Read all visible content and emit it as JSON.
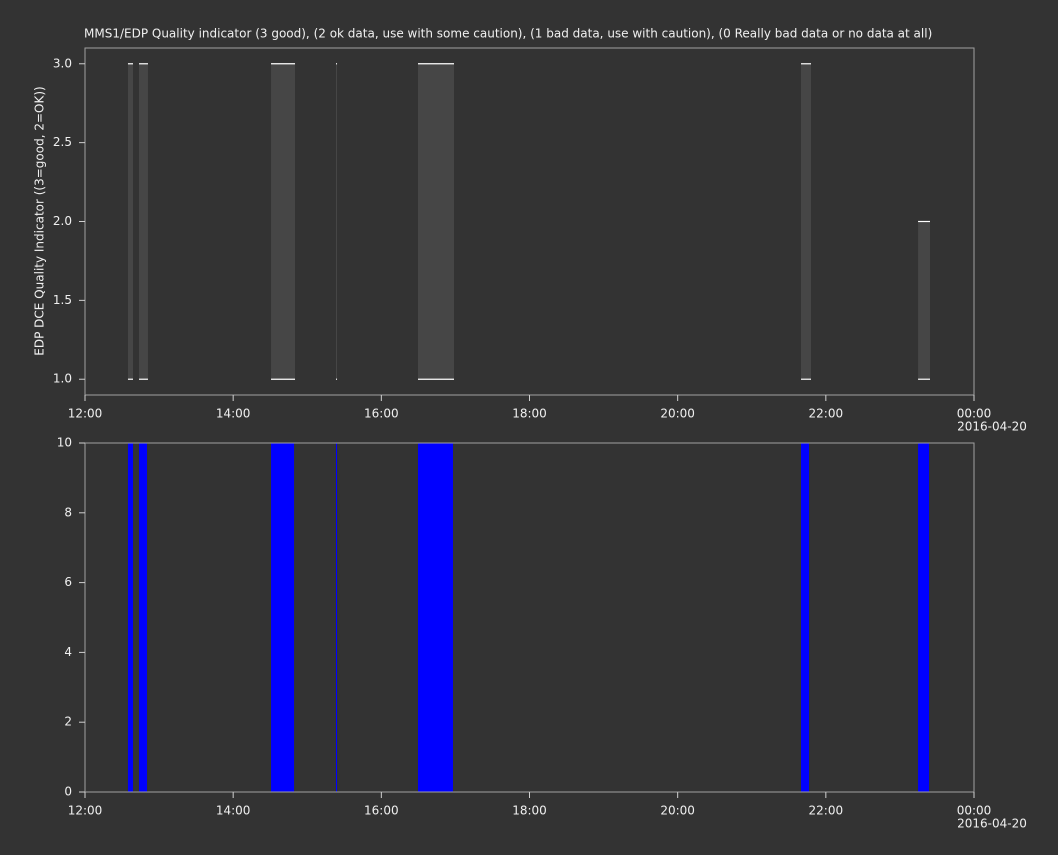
{
  "chart_data": [
    {
      "type": "interval",
      "title": "MMS1/EDP  Quality indicator (3 good), (2 ok data, use with some caution), (1 bad data, use with caution), (0 Really bad data or no data at all)",
      "ylabel": "EDP DCE Quality Indicator ((3=good, 2=OK))",
      "x_start": [
        12.58,
        12.729,
        14.511,
        15.388,
        16.495,
        21.665,
        23.245
      ],
      "x_end": [
        12.648,
        12.85,
        14.835,
        15.402,
        16.981,
        21.8,
        23.406
      ],
      "low": [
        1,
        1,
        1,
        1,
        1,
        1,
        1
      ],
      "high": [
        3,
        3,
        3,
        3,
        3,
        3,
        2
      ],
      "color": "#464646",
      "edge_color": "#ffffff",
      "xlim": [
        12,
        24
      ],
      "xticks": [
        {
          "value": 12,
          "label": "12:00"
        },
        {
          "value": 14,
          "label": "14:00"
        },
        {
          "value": 16,
          "label": "16:00"
        },
        {
          "value": 18,
          "label": "18:00"
        },
        {
          "value": 20,
          "label": "20:00"
        },
        {
          "value": 22,
          "label": "22:00"
        },
        {
          "value": 24,
          "label": "00:00"
        }
      ],
      "xtick_date": "2016-04-20",
      "ylim": [
        0.9,
        3.1
      ],
      "yticks": [
        {
          "value": 1,
          "label": "1.0"
        },
        {
          "value": 1.5,
          "label": "1.5"
        },
        {
          "value": 2,
          "label": "2.0"
        },
        {
          "value": 2.5,
          "label": "2.5"
        },
        {
          "value": 3,
          "label": "3.0"
        }
      ]
    },
    {
      "type": "bar",
      "x_start": [
        12.58,
        12.729,
        14.511,
        15.388,
        16.495,
        21.665,
        23.245
      ],
      "x_end": [
        12.648,
        12.837,
        14.822,
        15.402,
        16.967,
        21.773,
        23.393
      ],
      "values": [
        10,
        10,
        10,
        10,
        10,
        10,
        10
      ],
      "color": "#0000ff",
      "xlim": [
        12,
        24
      ],
      "xticks": [
        {
          "value": 12,
          "label": "12:00"
        },
        {
          "value": 14,
          "label": "14:00"
        },
        {
          "value": 16,
          "label": "16:00"
        },
        {
          "value": 18,
          "label": "18:00"
        },
        {
          "value": 20,
          "label": "20:00"
        },
        {
          "value": 22,
          "label": "22:00"
        },
        {
          "value": 24,
          "label": "00:00"
        }
      ],
      "xtick_date": "2016-04-20",
      "ylim": [
        0,
        10
      ],
      "yticks": [
        0,
        2,
        4,
        6,
        8,
        10
      ]
    }
  ]
}
